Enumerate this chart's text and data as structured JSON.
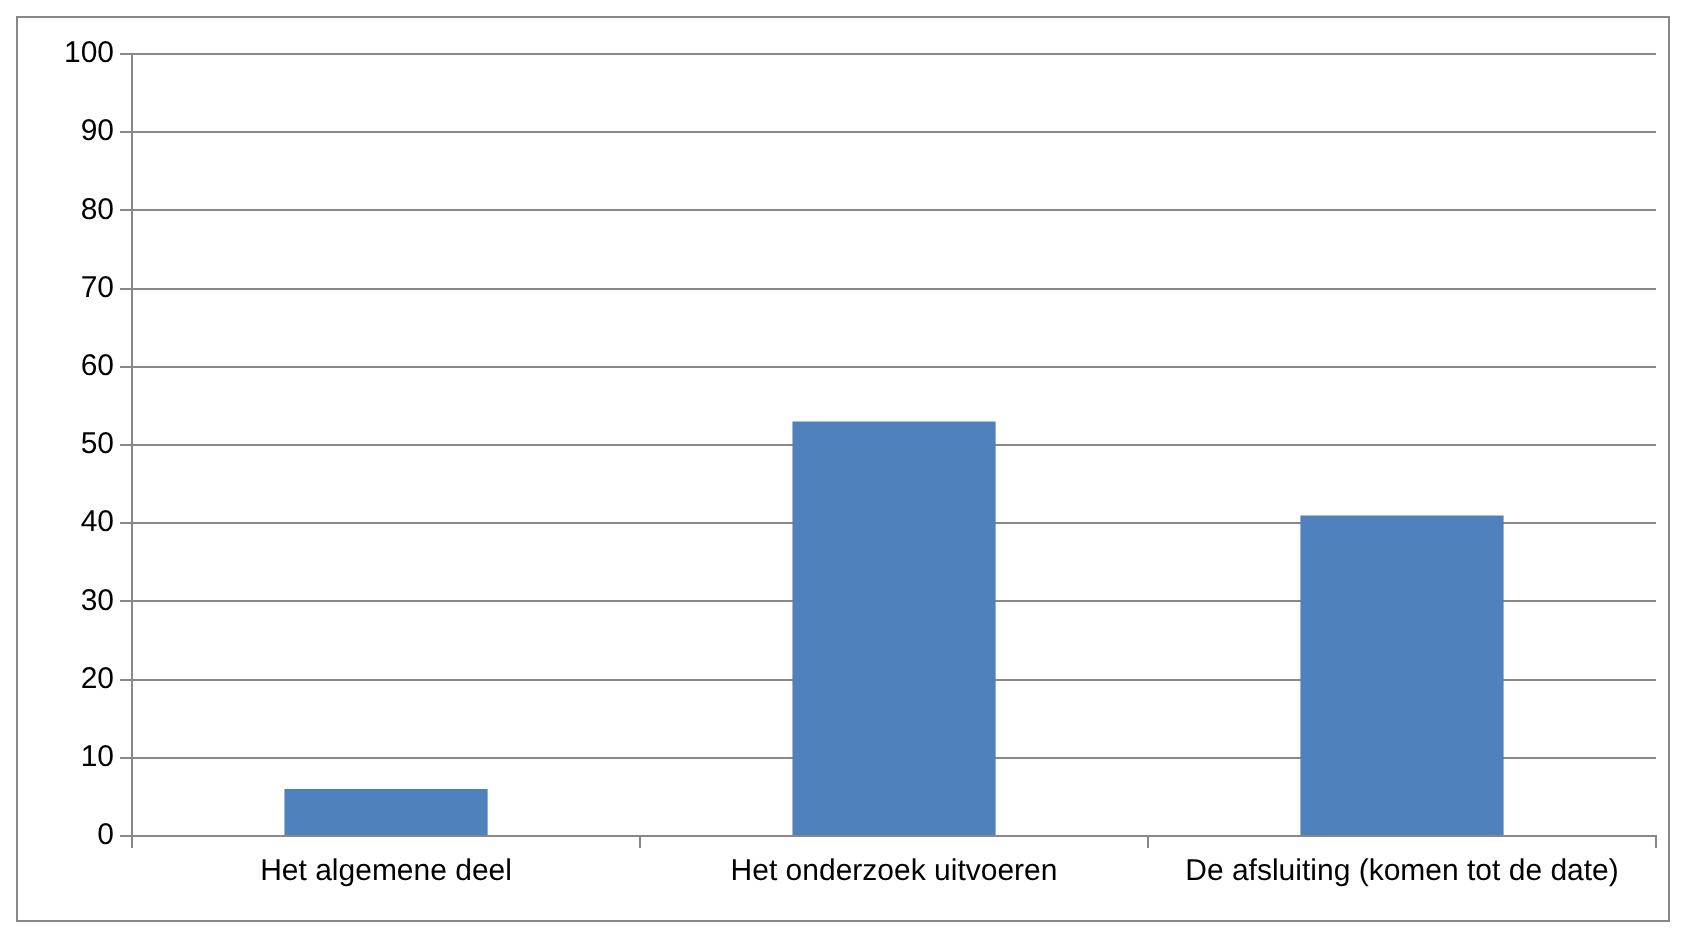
{
  "chart_data": {
    "type": "bar",
    "categories": [
      "Het algemene deel",
      "Het onderzoek uitvoeren",
      "De afsluiting (komen tot de date)"
    ],
    "values": [
      6,
      53,
      41
    ],
    "color": "#4f81bd",
    "ylim": [
      0,
      100
    ],
    "yticks": [
      0,
      10,
      20,
      30,
      40,
      50,
      60,
      70,
      80,
      90,
      100
    ],
    "grid": "y",
    "legend": false
  }
}
